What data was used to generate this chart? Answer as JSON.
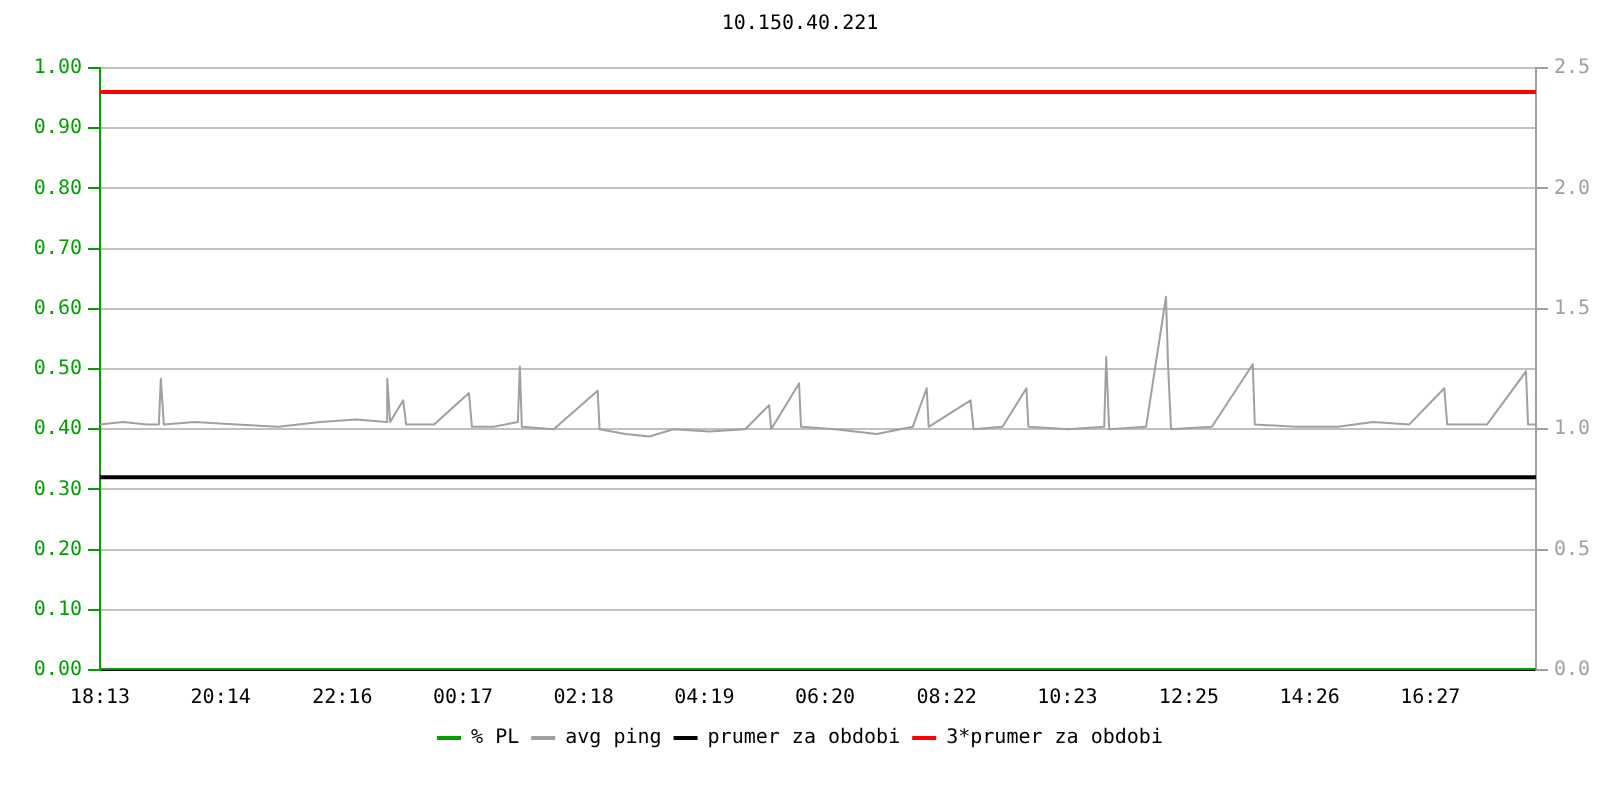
{
  "chart_data": {
    "type": "line",
    "title": "10.150.40.221",
    "xlim": [
      "--01-01T18:13",
      "--01-02T18:13"
    ],
    "xticks": [
      {
        "value": "--01-01T18:13",
        "label": "18:13"
      },
      {
        "value": "--01-01T20:14",
        "label": "20:14"
      },
      {
        "value": "--01-01T22:16",
        "label": "22:16"
      },
      {
        "value": "--01-02T00:17",
        "label": "00:17"
      },
      {
        "value": "--01-02T02:18",
        "label": "02:18"
      },
      {
        "value": "--01-02T04:19",
        "label": "04:19"
      },
      {
        "value": "--01-02T06:20",
        "label": "06:20"
      },
      {
        "value": "--01-02T08:22",
        "label": "08:22"
      },
      {
        "value": "--01-02T10:23",
        "label": "10:23"
      },
      {
        "value": "--01-02T12:25",
        "label": "12:25"
      },
      {
        "value": "--01-02T14:26",
        "label": "14:26"
      },
      {
        "value": "--01-02T16:27",
        "label": "16:27"
      }
    ],
    "ylim": [
      0,
      1
    ],
    "yticks": [
      {
        "value": 0,
        "label": "0.00"
      },
      {
        "value": 0.1,
        "label": "0.10"
      },
      {
        "value": 0.2,
        "label": "0.20"
      },
      {
        "value": 0.3,
        "label": "0.30"
      },
      {
        "value": 0.4,
        "label": "0.40"
      },
      {
        "value": 0.5,
        "label": "0.50"
      },
      {
        "value": 0.6,
        "label": "0.60"
      },
      {
        "value": 0.7,
        "label": "0.70"
      },
      {
        "value": 0.8,
        "label": "0.80"
      },
      {
        "value": 0.9,
        "label": "0.90"
      },
      {
        "value": 1,
        "label": "1.00"
      }
    ],
    "y2lim": [
      0,
      2.5
    ],
    "y2ticks": [
      {
        "value": 0,
        "label": "0.0"
      },
      {
        "value": 0.5,
        "label": "0.5"
      },
      {
        "value": 1,
        "label": "1.0"
      },
      {
        "value": 1.5,
        "label": "1.5"
      },
      {
        "value": 2,
        "label": "2.0"
      },
      {
        "value": 2.5,
        "label": "2.5"
      }
    ],
    "grid": "y",
    "legend": "bottom",
    "marker": "none",
    "line_style": "solid",
    "series": [
      {
        "name": "% PL",
        "color": "#00a000",
        "x": [
          "--01-01T18:13",
          "--01-02T18:13"
        ],
        "values": [
          0,
          0
        ]
      },
      {
        "name": "avg ping",
        "color": "#a0a0a0",
        "axis": "y2",
        "x": [
          "--01-01T18:13",
          "--01-01T18:36",
          "--01-01T19:00",
          "--01-01T19:12",
          "--01-01T19:14",
          "--01-01T19:17",
          "--01-01T19:48",
          "--01-01T20:30",
          "--01-01T21:12",
          "--01-01T21:54",
          "--01-01T22:30",
          "--01-01T23:00",
          "--01-01T23:01",
          "--01-01T23:04",
          "--01-01T23:17",
          "--01-01T23:20",
          "--01-01T23:48",
          "--01-02T00:23",
          "--01-02T00:26",
          "--01-02T00:48",
          "--01-02T01:12",
          "--01-02T01:14",
          "--01-02T01:16",
          "--01-02T01:48",
          "--01-02T02:32",
          "--01-02T02:34",
          "--01-02T03:00",
          "--01-02T03:24",
          "--01-02T03:48",
          "--01-02T04:24",
          "--01-02T05:00",
          "--01-02T05:24",
          "--01-02T05:26",
          "--01-02T05:54",
          "--01-02T05:56",
          "--01-02T06:30",
          "--01-02T07:12",
          "--01-02T07:48",
          "--01-02T08:02",
          "--01-02T08:04",
          "--01-02T08:46",
          "--01-02T08:49",
          "--01-02T09:18",
          "--01-02T09:42",
          "--01-02T09:44",
          "--01-02T10:24",
          "--01-02T11:00",
          "--01-02T11:02",
          "--01-02T11:05",
          "--01-02T11:42",
          "--01-02T12:02",
          "--01-02T12:04",
          "--01-02T12:07",
          "--01-02T12:48",
          "--01-02T13:29",
          "--01-02T13:31",
          "--01-02T14:12",
          "--01-02T14:54",
          "--01-02T15:30",
          "--01-02T16:06",
          "--01-02T16:41",
          "--01-02T16:44",
          "--01-02T17:24",
          "--01-02T18:03",
          "--01-02T18:05",
          "--01-02T18:12"
        ],
        "values": [
          1.02,
          1.03,
          1.02,
          1.02,
          1.21,
          1.02,
          1.03,
          1.02,
          1.01,
          1.03,
          1.04,
          1.03,
          1.21,
          1.03,
          1.12,
          1.02,
          1.02,
          1.15,
          1.01,
          1.01,
          1.03,
          1.26,
          1.01,
          1.0,
          1.16,
          1.0,
          0.98,
          0.97,
          1.0,
          0.99,
          1.0,
          1.1,
          1.0,
          1.19,
          1.01,
          1.0,
          0.98,
          1.01,
          1.17,
          1.01,
          1.12,
          1.0,
          1.01,
          1.17,
          1.01,
          1.0,
          1.01,
          1.3,
          1.0,
          1.01,
          1.55,
          1.27,
          1.0,
          1.01,
          1.27,
          1.02,
          1.01,
          1.01,
          1.03,
          1.02,
          1.17,
          1.02,
          1.02,
          1.24,
          1.02,
          1.02
        ]
      },
      {
        "name": "prumer za obdobi",
        "color": "#000000",
        "axis": "y2",
        "x": [
          "--01-01T18:13",
          "--01-02T18:13"
        ],
        "values": [
          0.8,
          0.8
        ]
      },
      {
        "name": "3*prumer za obdobi",
        "color": "#ff0000",
        "axis": "y2",
        "x": [
          "--01-01T18:13",
          "--01-02T18:13"
        ],
        "values": [
          2.4,
          2.4
        ]
      }
    ]
  }
}
